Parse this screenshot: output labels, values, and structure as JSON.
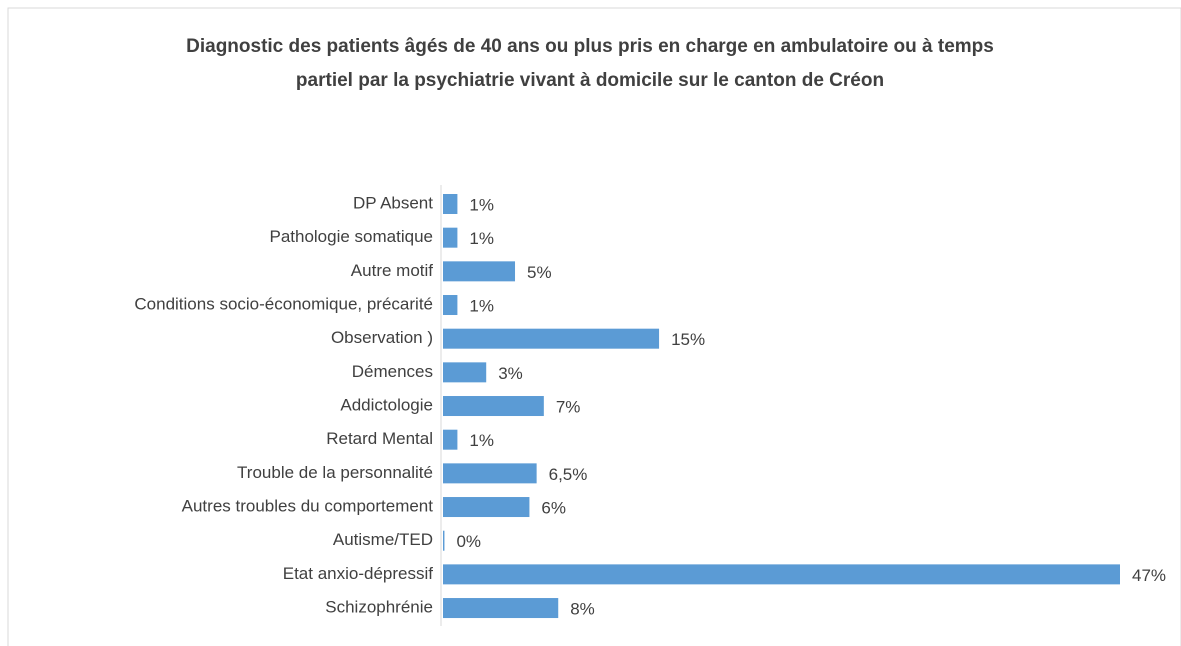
{
  "chart_data": {
    "type": "barh",
    "title": "Diagnostic des patients âgés de 40 ans ou plus pris en charge en ambulatoire ou à temps partiel par la psychiatrie vivant à domicile sur le canton de Créon",
    "categories": [
      "DP Absent",
      "Pathologie somatique",
      "Autre motif",
      "Conditions socio-économique, précarité",
      "Observation )",
      "Démences",
      "Addictologie",
      "Retard Mental",
      "Trouble de la personnalité",
      "Autres troubles du comportement",
      "Autisme/TED",
      "Etat anxio-dépressif",
      "Schizophrénie"
    ],
    "values": [
      1,
      1,
      5,
      1,
      15,
      3,
      7,
      1,
      6.5,
      6,
      0.1,
      47,
      8
    ],
    "value_labels": [
      "1%",
      "1%",
      "5%",
      "1%",
      "15%",
      "3%",
      "7%",
      "1%",
      "6,5%",
      "6%",
      "0%",
      "47%",
      "8%"
    ],
    "color": "#5b9bd5"
  }
}
